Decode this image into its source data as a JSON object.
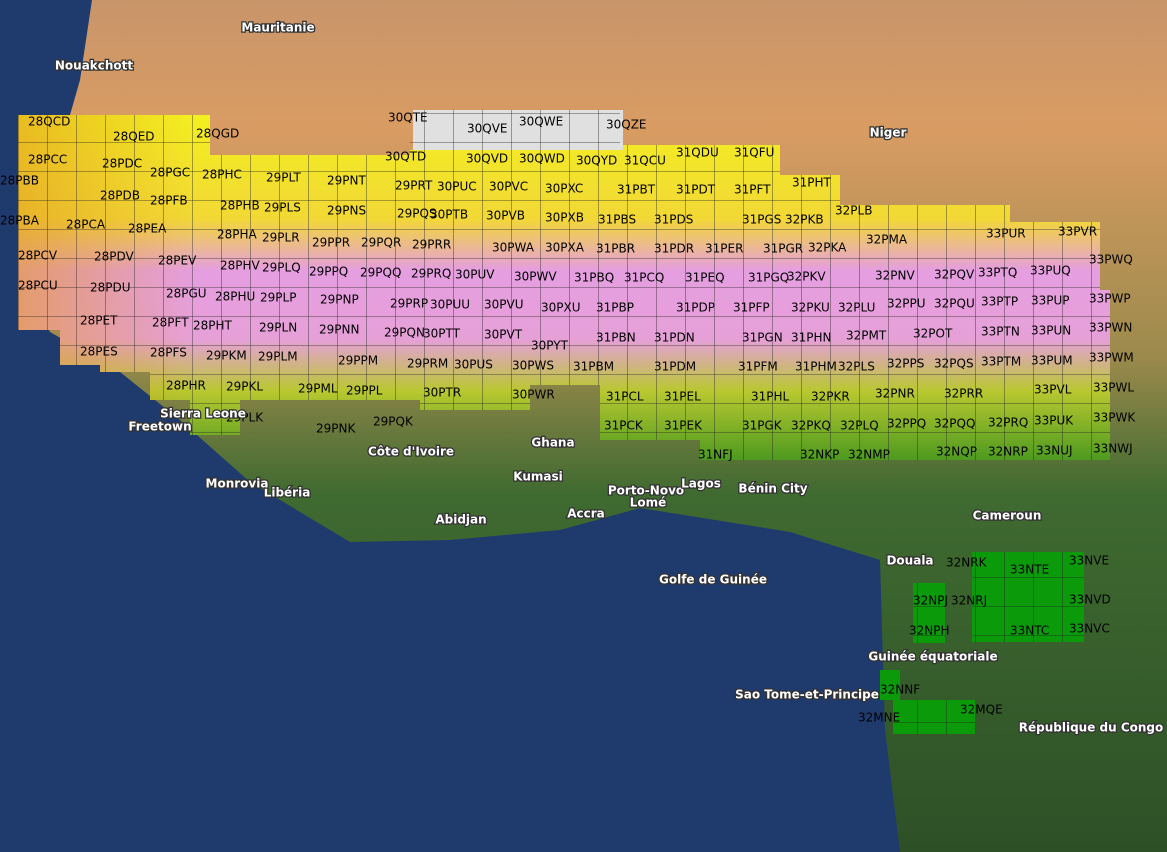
{
  "map": {
    "tiles": [
      "28QCD",
      "28QED",
      "28QGD",
      "30QTE",
      "30QVE",
      "30QWE",
      "30QZE",
      "28PCC",
      "28PDC",
      "28PGC",
      "28PHC",
      "29PLT",
      "29PNT",
      "30QTD",
      "30QVD",
      "30QWD",
      "30QYD",
      "31QCU",
      "31QDU",
      "31QFU",
      "28PBB",
      "29PRT",
      "30PUC",
      "30PVC",
      "30PXC",
      "31PBT",
      "31PDT",
      "31PFT",
      "31PHT",
      "28PDB",
      "28PFB",
      "28PHB",
      "29PLS",
      "29PNS",
      "29PQS",
      "30PTB",
      "30PVB",
      "30PXB",
      "31PBS",
      "31PDS",
      "31PGS",
      "32PKB",
      "32PLB",
      "28PBA",
      "28PCA",
      "28PEA",
      "28PHA",
      "29PLR",
      "29PPR",
      "29PQR",
      "29PRR",
      "30PWA",
      "30PXA",
      "31PBR",
      "31PDR",
      "31PER",
      "31PGR",
      "32PKA",
      "32PMA",
      "33PUR",
      "33PVR",
      "28PCV",
      "28PDV",
      "28PEV",
      "28PHV",
      "29PLQ",
      "29PPQ",
      "29PQQ",
      "29PRQ",
      "30PUV",
      "30PWV",
      "31PBQ",
      "31PCQ",
      "31PEQ",
      "31PGQ",
      "32PKV",
      "32PNV",
      "32PQV",
      "33PTQ",
      "33PUQ",
      "33PWQ",
      "28PCU",
      "28PDU",
      "28PGU",
      "28PHU",
      "29PLP",
      "29PNP",
      "29PRP",
      "30PUU",
      "30PVU",
      "30PXU",
      "31PBP",
      "31PDP",
      "31PFP",
      "32PKU",
      "32PLU",
      "32PPU",
      "32PQU",
      "33PTP",
      "33PUP",
      "33PWP",
      "28PET",
      "28PFT",
      "28PHT",
      "29PLN",
      "29PNN",
      "29PQN",
      "30PTT",
      "30PVT",
      "30PYT",
      "31PBN",
      "31PDN",
      "31PGN",
      "31PHN",
      "32PMT",
      "32POT",
      "33PTN",
      "33PUN",
      "33PWN",
      "28PES",
      "28PFS",
      "29PKM",
      "29PLM",
      "29PPM",
      "29PRM",
      "30PUS",
      "30PWS",
      "31PBM",
      "31PDM",
      "31PFM",
      "31PHM",
      "32PLS",
      "32PPS",
      "32PQS",
      "33PTM",
      "33PUM",
      "33PWM",
      "28PHR",
      "29PKL",
      "29PML",
      "29PPL",
      "30PTR",
      "30PWR",
      "31PCL",
      "31PEL",
      "31PHL",
      "32PKR",
      "32PNR",
      "32PRR",
      "33PVL",
      "33PWL",
      "29PLK",
      "29PNK",
      "29PQK",
      "31PCK",
      "31PEK",
      "31PGK",
      "32PKQ",
      "32PLQ",
      "32PPQ",
      "32PQQ",
      "32PRQ",
      "33PUK",
      "33PWK",
      "31NFJ",
      "32NKP",
      "32NMP",
      "32NQP",
      "32NRP",
      "33NUJ",
      "33NWJ",
      "32NRK",
      "33NTE",
      "33NVE",
      "32NPJ",
      "32NRJ",
      "33NVD",
      "32NPH",
      "33NTC",
      "33NVC",
      "32NNF",
      "32MNE",
      "32MQE"
    ],
    "places": [
      "Mauritanie",
      "Nouakchott",
      "Niger",
      "Sierra Leone",
      "Freetown",
      "Côte d'Ivoire",
      "Ghana",
      "Kumasi",
      "Libéria",
      "Abidjan",
      "Accra",
      "Porto-Novo",
      "Lomé",
      "Lagos",
      "Cameroun",
      "Douala",
      "Guinée équatoriale",
      "Sao Tome-et-Principe",
      "République du Congo",
      "Golfe de Guinée",
      "Monrovia",
      "Bénin City"
    ]
  }
}
